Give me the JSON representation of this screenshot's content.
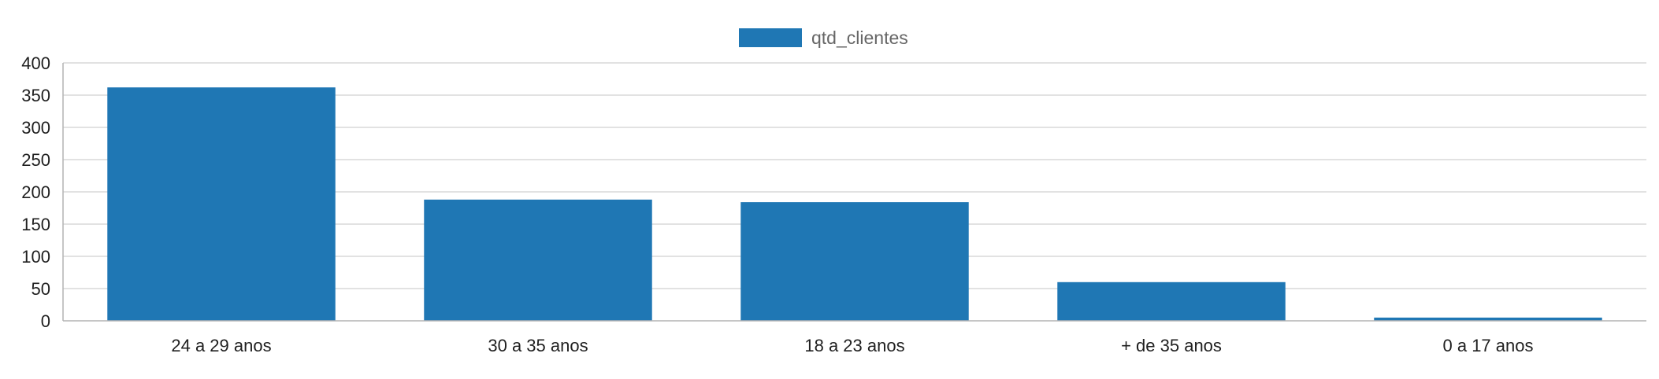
{
  "chart_data": {
    "type": "bar",
    "categories": [
      "24 a 29 anos",
      "30 a 35 anos",
      "18 a 23 anos",
      "+ de 35 anos",
      "0 a 17 anos"
    ],
    "series": [
      {
        "name": "qtd_clientes",
        "values": [
          362,
          188,
          184,
          60,
          5
        ],
        "color": "#1f77b4"
      }
    ],
    "ylim": [
      0,
      400
    ],
    "yticks": [
      0,
      50,
      100,
      150,
      200,
      250,
      300,
      350,
      400
    ],
    "grid": true,
    "legend_position": "top-center",
    "colors": {
      "bar": "#1f77b4",
      "grid": "#d9d9d9",
      "axis": "#b3b3b3",
      "text": "#1f1f1f",
      "legend_text": "#666666"
    }
  }
}
